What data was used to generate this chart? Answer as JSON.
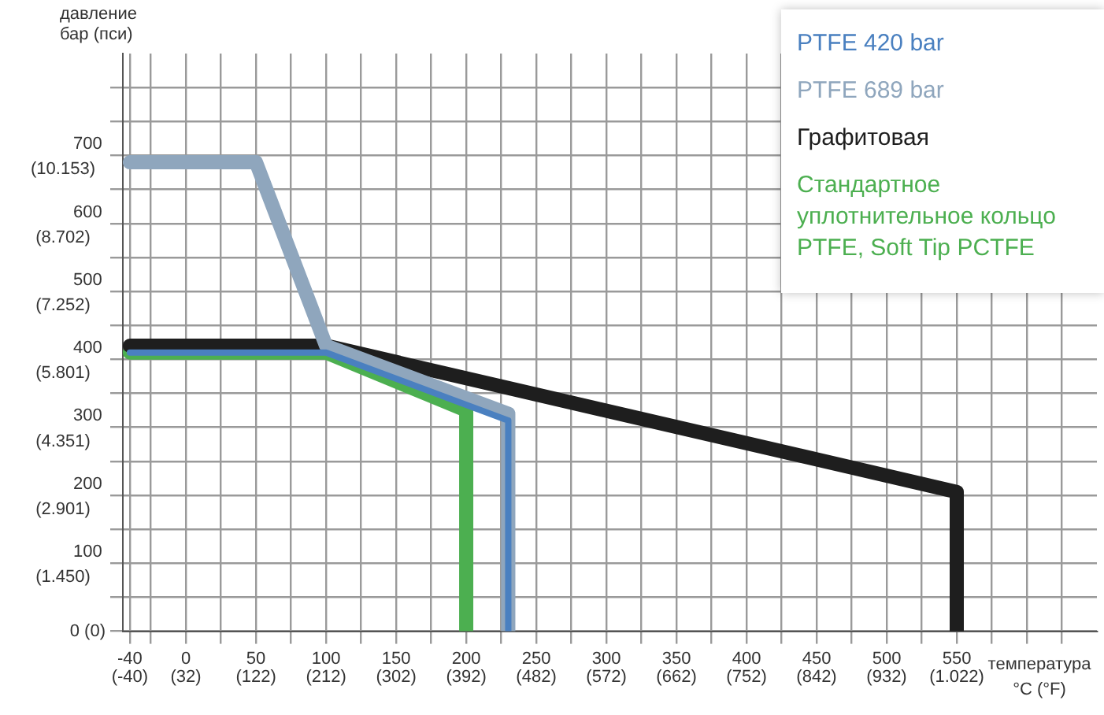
{
  "chart_data": {
    "type": "line",
    "xlabel": "температура\n°C (°F)",
    "ylabel": "давление\nбар (пси)",
    "xlim": [
      -45,
      650
    ],
    "ylim": [
      0,
      850
    ],
    "xticks": [
      -40,
      {
        "value": -25,
        "label": null
      },
      0,
      {
        "value": 25,
        "label": null
      },
      50,
      {
        "value": 75,
        "label": null
      },
      100,
      {
        "value": 125,
        "label": null
      },
      150,
      {
        "value": 175,
        "label": null
      },
      200,
      {
        "value": 225,
        "label": null
      },
      250,
      {
        "value": 275,
        "label": null
      },
      300,
      {
        "value": 325,
        "label": null
      },
      350,
      {
        "value": 375,
        "label": null
      },
      400,
      {
        "value": 425,
        "label": null
      },
      450,
      {
        "value": 475,
        "label": null
      },
      500,
      {
        "value": 525,
        "label": null
      },
      550,
      {
        "value": 575,
        "label": null
      },
      {
        "value": 600,
        "label": null
      },
      {
        "value": 625,
        "label": null
      }
    ],
    "x2lim": [
      -49,
      1202
    ],
    "x2ticks": [
      {
        "value": -40,
        "label": "(-40)"
      },
      {
        "value": 32,
        "label": "(32)"
      },
      {
        "value": 122,
        "label": "(122)"
      },
      {
        "value": 212,
        "label": "(212)"
      },
      {
        "value": 302,
        "label": "(302)"
      },
      {
        "value": 392,
        "label": "(392)"
      },
      {
        "value": 482,
        "label": "(482)"
      },
      {
        "value": 572,
        "label": "(572)"
      },
      {
        "value": 662,
        "label": "(662)"
      },
      {
        "value": 752,
        "label": "(752)"
      },
      {
        "value": 842,
        "label": "(842)"
      },
      {
        "value": 932,
        "label": "(932)"
      },
      {
        "value": 1022,
        "label": "(1.022)"
      }
    ],
    "yticks": [
      {
        "value": 0,
        "label": "0 (0)"
      },
      {
        "value": 50,
        "label": null
      },
      100,
      {
        "value": 150,
        "label": null
      },
      200,
      {
        "value": 250,
        "label": null
      },
      300,
      {
        "value": 350,
        "label": null
      },
      400,
      {
        "value": 450,
        "label": null
      },
      500,
      {
        "value": 550,
        "label": null
      },
      600,
      {
        "value": 650,
        "label": null
      },
      700,
      {
        "value": 750,
        "label": null
      },
      {
        "value": 800,
        "label": null
      }
    ],
    "y2lim": [
      0,
      12328
    ],
    "y2ticks": [
      {
        "value": 1450,
        "label": "(1.450)"
      },
      {
        "value": 2901,
        "label": "(2.901)"
      },
      {
        "value": 4351,
        "label": "(4.351)"
      },
      {
        "value": 5801,
        "label": "(5.801)"
      },
      {
        "value": 7252,
        "label": "(7.252)"
      },
      {
        "value": 8702,
        "label": "(8.702)"
      },
      {
        "value": 10153,
        "label": "(10.153)"
      }
    ],
    "grid": true,
    "legend": "top right",
    "series": [
      {
        "name": "PTFE 420 bar",
        "color": "#4a80c0",
        "x": [
          -40,
          100,
          230,
          230
        ],
        "values": [
          410,
          410,
          310,
          0
        ]
      },
      {
        "name": "PTFE 689 bar",
        "color": "#8fa6bd",
        "x": [
          -40,
          50,
          100,
          230,
          230
        ],
        "values": [
          690,
          690,
          420,
          320,
          0
        ]
      },
      {
        "name": "Графитовая",
        "color": "#1e1e1e",
        "x": [
          -40,
          100,
          550,
          550
        ],
        "values": [
          420,
          420,
          205,
          0
        ]
      },
      {
        "name": "Стандартное уплотнительное кольцо PTFE, Soft Tip PCTFE",
        "color": "#4caf50",
        "x": [
          -40,
          100,
          200,
          200
        ],
        "values": [
          410,
          410,
          325,
          0
        ]
      }
    ]
  }
}
